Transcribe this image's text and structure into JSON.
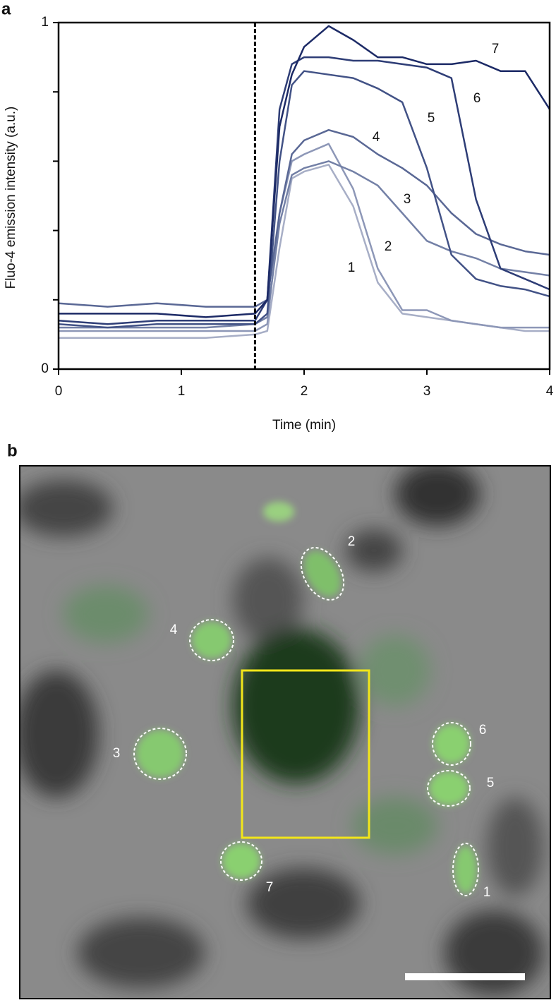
{
  "panel_a_label": "a",
  "chart_data": {
    "type": "line",
    "y_label": "Fluo-4 emission intensity (a.u.)",
    "x_label": "Time (min)",
    "x": [
      0,
      0.4,
      0.8,
      1.2,
      1.6,
      1.7,
      1.8,
      1.9,
      2.0,
      2.2,
      2.4,
      2.6,
      2.8,
      3.0,
      3.2,
      3.4,
      3.6,
      3.8,
      4.0
    ],
    "series": [
      {
        "name": "1",
        "color": "#a7aec6",
        "values": [
          0.09,
          0.09,
          0.09,
          0.09,
          0.1,
          0.11,
          0.35,
          0.55,
          0.57,
          0.59,
          0.47,
          0.25,
          0.16,
          0.15,
          0.14,
          0.13,
          0.12,
          0.11,
          0.11
        ]
      },
      {
        "name": "2",
        "color": "#8d97b7",
        "values": [
          0.11,
          0.11,
          0.11,
          0.11,
          0.11,
          0.13,
          0.45,
          0.6,
          0.62,
          0.65,
          0.52,
          0.29,
          0.17,
          0.17,
          0.14,
          0.13,
          0.12,
          0.12,
          0.12
        ]
      },
      {
        "name": "3",
        "color": "#7380a6",
        "values": [
          0.12,
          0.12,
          0.12,
          0.12,
          0.13,
          0.15,
          0.42,
          0.56,
          0.58,
          0.6,
          0.57,
          0.53,
          0.45,
          0.37,
          0.34,
          0.32,
          0.29,
          0.28,
          0.27
        ]
      },
      {
        "name": "4",
        "color": "#5a6895",
        "values": [
          0.19,
          0.18,
          0.19,
          0.18,
          0.18,
          0.2,
          0.45,
          0.62,
          0.66,
          0.69,
          0.67,
          0.62,
          0.58,
          0.53,
          0.45,
          0.39,
          0.36,
          0.34,
          0.33
        ]
      },
      {
        "name": "5",
        "color": "#425286",
        "values": [
          0.13,
          0.12,
          0.13,
          0.13,
          0.13,
          0.16,
          0.6,
          0.82,
          0.86,
          0.85,
          0.84,
          0.81,
          0.77,
          0.58,
          0.33,
          0.26,
          0.24,
          0.23,
          0.21
        ]
      },
      {
        "name": "6",
        "color": "#2e3d76",
        "values": [
          0.14,
          0.13,
          0.14,
          0.14,
          0.14,
          0.2,
          0.75,
          0.88,
          0.9,
          0.9,
          0.89,
          0.89,
          0.88,
          0.87,
          0.84,
          0.49,
          0.29,
          0.26,
          0.23
        ]
      },
      {
        "name": "7",
        "color": "#1c2a66",
        "values": [
          0.16,
          0.16,
          0.16,
          0.15,
          0.16,
          0.2,
          0.7,
          0.85,
          0.93,
          0.99,
          0.95,
          0.9,
          0.9,
          0.88,
          0.88,
          0.89,
          0.86,
          0.86,
          0.75
        ]
      }
    ],
    "stimulus_time": 1.6,
    "xlim": [
      0,
      4
    ],
    "xticks": [
      0,
      1,
      2,
      3,
      4
    ],
    "ylim": [
      0,
      1
    ],
    "yticks": [
      0,
      1
    ],
    "yminorticks": [
      0.2,
      0.4,
      0.6,
      0.8
    ],
    "grid": false
  },
  "panel_b": {
    "label": "b",
    "cell_labels": [
      "1",
      "2",
      "3",
      "4",
      "5",
      "6",
      "7"
    ]
  }
}
